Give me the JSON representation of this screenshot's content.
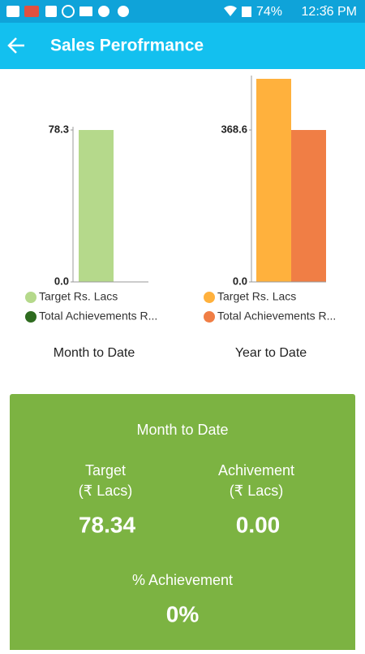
{
  "status_bar": {
    "battery": "74%",
    "time": "12:36 PM"
  },
  "app_bar": {
    "title": "Sales Perofrmance"
  },
  "chart_data": [
    {
      "type": "bar",
      "title": "Month to Date",
      "series": [
        {
          "name": "Target Rs. Lacs",
          "color": "#b5d98b",
          "values": [
            78.34
          ]
        },
        {
          "name": "Total Achievements R...",
          "color": "#2e6b1f",
          "values": [
            0
          ]
        }
      ],
      "ylim": [
        0,
        78.34
      ],
      "yticks": [
        {
          "value": 0,
          "label": "0.0"
        },
        {
          "value": 78.34,
          "label": "78.3"
        }
      ]
    },
    {
      "type": "bar",
      "title": "Year to Date",
      "series": [
        {
          "name": "Target Rs. Lacs",
          "color": "#ffb13d",
          "values": [
            492.8
          ]
        },
        {
          "name": "Total Achievements R...",
          "color": "#f07e45",
          "values": [
            368.6
          ]
        }
      ],
      "ylim": [
        0,
        492.8
      ],
      "yticks": [
        {
          "value": 0,
          "label": "0.0"
        },
        {
          "value": 368.6,
          "label": "368.6"
        }
      ]
    }
  ],
  "summary_card": {
    "title": "Month to Date",
    "target": {
      "label": "Target",
      "unit": "(₹ Lacs)",
      "value": "78.34"
    },
    "achievement": {
      "label": "Achivement",
      "unit": "(₹ Lacs)",
      "value": "0.00"
    },
    "percent": {
      "label": "% Achievement",
      "value": "0%"
    }
  }
}
